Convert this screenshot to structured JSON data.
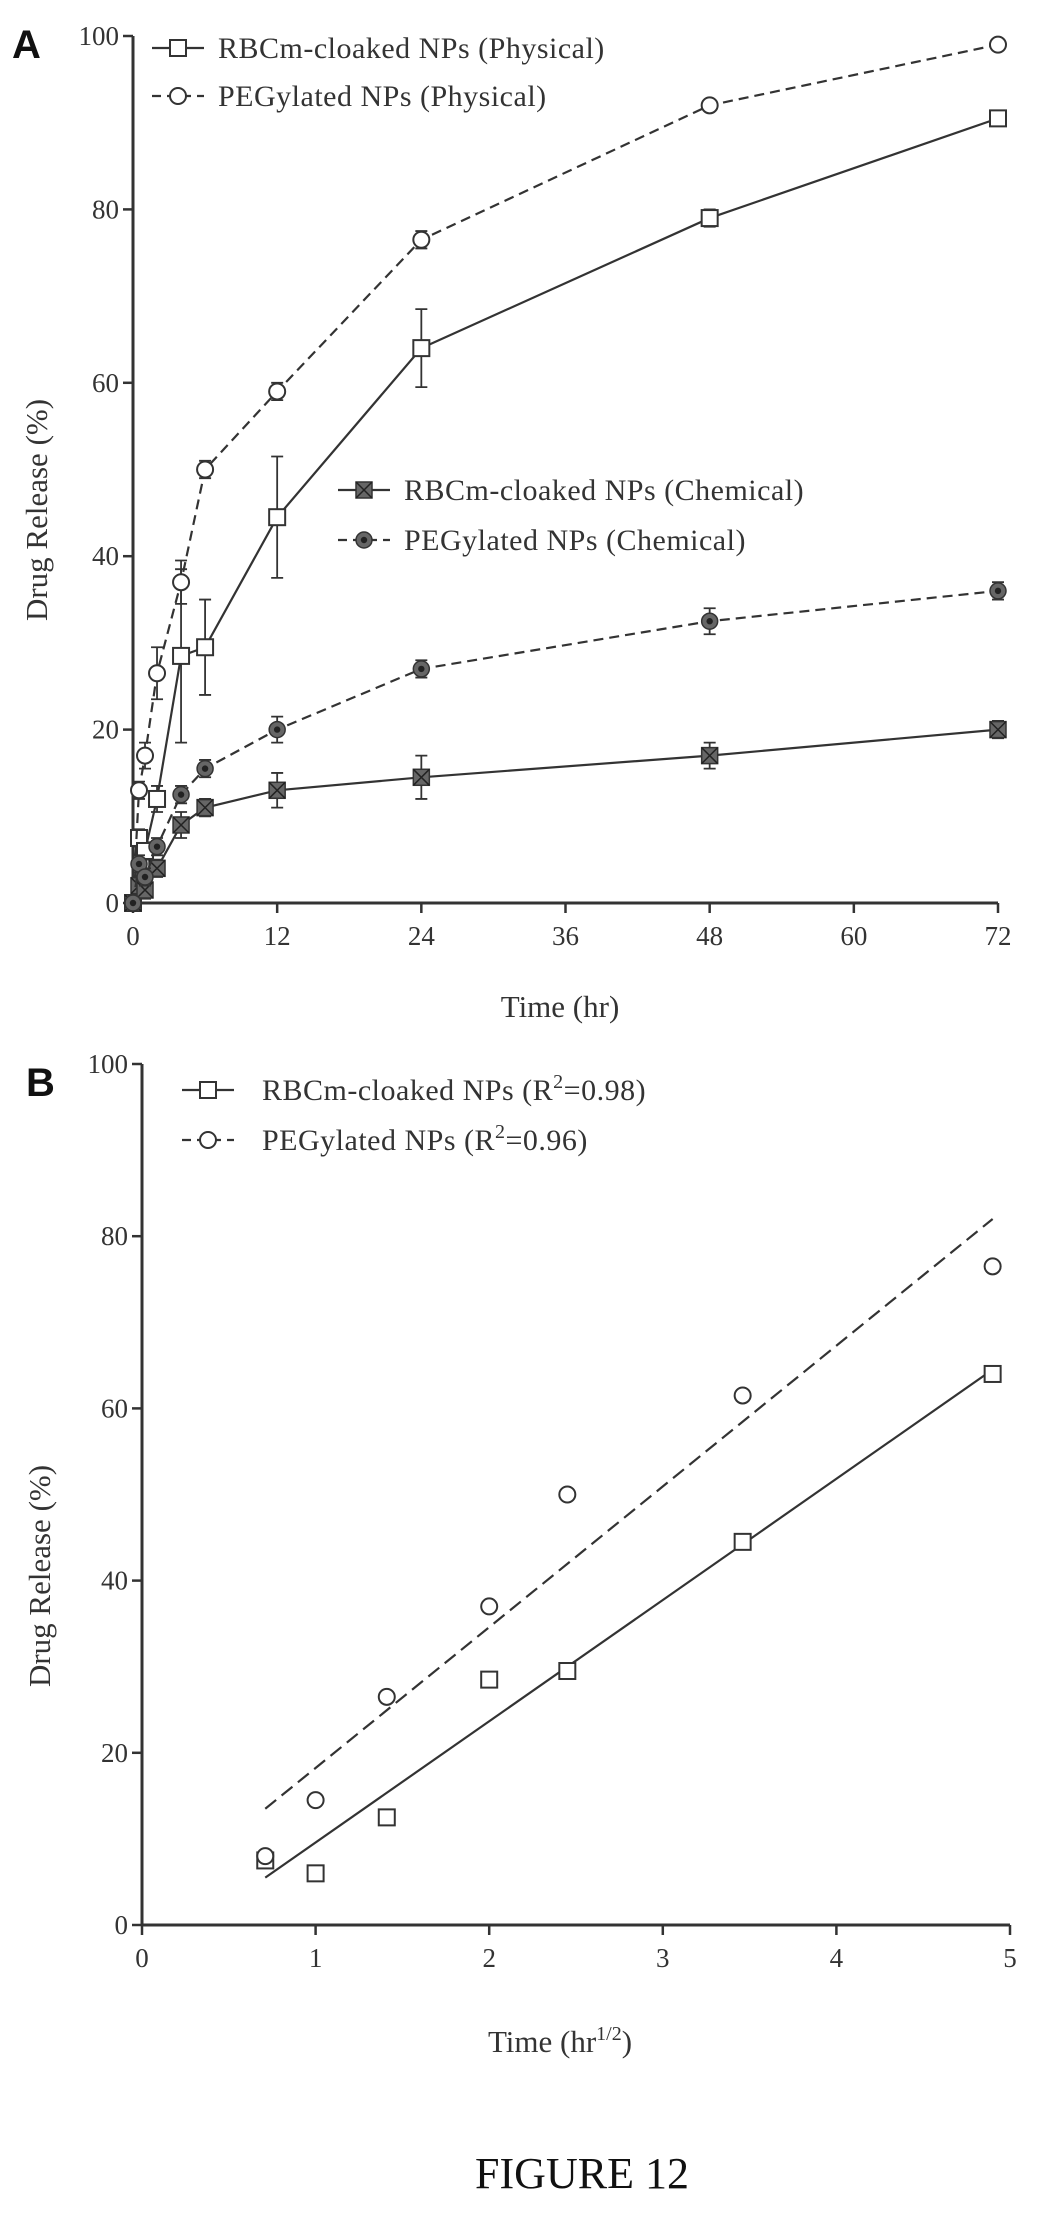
{
  "figure_caption": "FIGURE 12",
  "panels": [
    {
      "letter": "A"
    },
    {
      "letter": "B"
    }
  ],
  "chart_data": [
    {
      "type": "line",
      "panel": "A",
      "xlabel": "Time (hr)",
      "ylabel": "Drug Release (%)",
      "xlim": [
        0,
        72
      ],
      "ylim": [
        0,
        100
      ],
      "x_ticks": [
        0,
        12,
        24,
        36,
        48,
        60,
        72
      ],
      "y_ticks": [
        0,
        20,
        40,
        60,
        80,
        100
      ],
      "grid": false,
      "legend_placement": "top-left (physical), center-right (chemical)",
      "x": [
        0,
        0.5,
        1,
        2,
        4,
        6,
        12,
        24,
        48,
        72
      ],
      "series": [
        {
          "name": "RBCm-cloaked NPs (Physical)",
          "marker": "square",
          "line": "solid",
          "color": "#333333",
          "values": [
            0,
            7.5,
            6,
            12,
            28.5,
            29.5,
            44.5,
            64,
            79,
            90.5
          ],
          "errors": [
            0,
            1,
            1,
            1.5,
            10,
            5.5,
            7,
            4.5,
            1,
            0.5
          ]
        },
        {
          "name": "PEGylated NPs (Physical)",
          "marker": "circle",
          "line": "dashed",
          "color": "#333333",
          "values": [
            0,
            13,
            17,
            26.5,
            37,
            50,
            59,
            76.5,
            92,
            99
          ],
          "errors": [
            0,
            1,
            1.5,
            3,
            2.5,
            1,
            1,
            1,
            0.5,
            0.3
          ]
        },
        {
          "name": "RBCm-cloaked NPs (Chemical)",
          "marker": "filled-square",
          "line": "solid",
          "color": "#333333",
          "values": [
            0,
            2,
            1.5,
            4,
            9,
            11,
            13,
            14.5,
            17,
            20
          ],
          "errors": [
            0,
            2,
            1,
            1,
            1.5,
            1,
            2,
            2.5,
            1.5,
            1
          ]
        },
        {
          "name": "PEGylated NPs (Chemical)",
          "marker": "filled-circle",
          "line": "dashed",
          "color": "#333333",
          "values": [
            0,
            4.5,
            3,
            6.5,
            12.5,
            15.5,
            20,
            27,
            32.5,
            36
          ],
          "errors": [
            0,
            1,
            1,
            1,
            1,
            1,
            1.5,
            1,
            1.5,
            1
          ]
        }
      ]
    },
    {
      "type": "scatter",
      "panel": "B",
      "xlabel_main": "Time (hr",
      "xlabel_sup": "1/2",
      "xlabel_close": ")",
      "ylabel": "Drug Release (%)",
      "xlim": [
        0,
        5
      ],
      "ylim": [
        0,
        100
      ],
      "x_ticks": [
        0,
        1,
        2,
        3,
        4,
        5
      ],
      "y_ticks": [
        0,
        20,
        40,
        60,
        80,
        100
      ],
      "grid": false,
      "legend_placement": "top-left",
      "series": [
        {
          "legend_main": "RBCm-cloaked NPs (R",
          "legend_sup": "2",
          "legend_tail": "=0.98)",
          "marker": "square",
          "line": "solid",
          "color": "#333333",
          "x": [
            0.71,
            1,
            1.41,
            2,
            2.45,
            3.46,
            4.9
          ],
          "values": [
            7.5,
            6,
            12.5,
            28.5,
            29.5,
            44.5,
            64
          ],
          "fit": [
            [
              0.71,
              5.5
            ],
            [
              4.9,
              64.5
            ]
          ]
        },
        {
          "legend_main": "PEGylated NPs (R",
          "legend_sup": "2",
          "legend_tail": "=0.96)",
          "marker": "circle",
          "line": "dashed",
          "color": "#333333",
          "x": [
            0.71,
            1,
            1.41,
            2,
            2.45,
            3.46,
            4.9
          ],
          "values": [
            8,
            14.5,
            26.5,
            37,
            50,
            61.5,
            76.5
          ],
          "fit": [
            [
              0.71,
              13.5
            ],
            [
              4.9,
              82
            ]
          ]
        }
      ]
    }
  ]
}
